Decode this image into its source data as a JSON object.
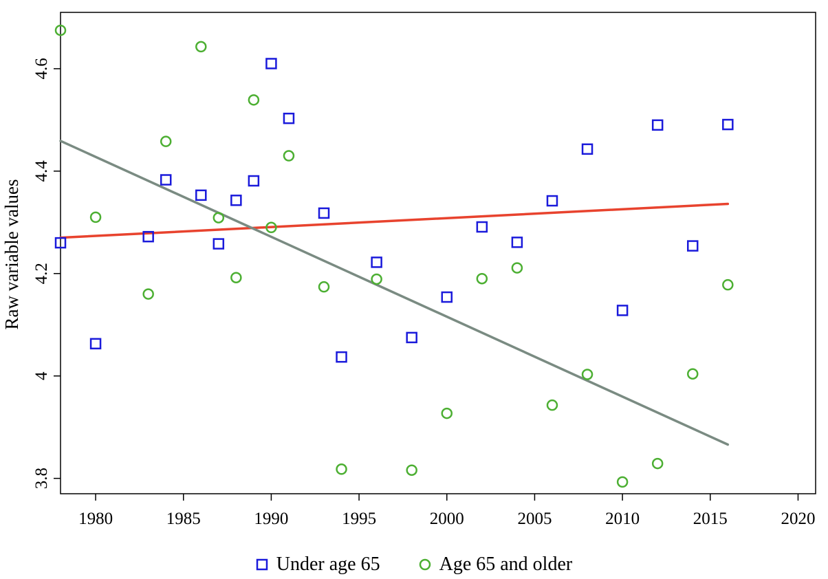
{
  "chart_data": {
    "type": "scatter",
    "title": "",
    "xlabel": "",
    "ylabel": "Raw variable values",
    "xlim": [
      1978,
      2021
    ],
    "ylim": [
      3.77,
      4.71
    ],
    "xticks": [
      1980,
      1985,
      1990,
      1995,
      2000,
      2005,
      2010,
      2015,
      2020
    ],
    "yticks": [
      3.8,
      4,
      4.2,
      4.4,
      4.6
    ],
    "ytick_labels": [
      "3.8",
      "4",
      "4.2",
      "4.4",
      "4.6"
    ],
    "grid": false,
    "legend_position": "bottom",
    "series": [
      {
        "name": "Under age 65",
        "marker": "square",
        "color": "#1a1adb",
        "x": [
          1978,
          1980,
          1983,
          1984,
          1986,
          1987,
          1988,
          1989,
          1990,
          1991,
          1993,
          1994,
          1996,
          1998,
          2000,
          2002,
          2004,
          2006,
          2008,
          2010,
          2012,
          2014,
          2016
        ],
        "y": [
          4.26,
          4.063,
          4.272,
          4.383,
          4.353,
          4.258,
          4.343,
          4.381,
          4.61,
          4.503,
          4.318,
          4.037,
          4.222,
          4.075,
          4.154,
          4.291,
          4.261,
          4.342,
          4.443,
          4.128,
          4.49,
          4.254,
          4.491
        ]
      },
      {
        "name": "Age 65 and older",
        "marker": "circle",
        "color": "#4caf32",
        "x": [
          1978,
          1980,
          1983,
          1984,
          1986,
          1987,
          1988,
          1989,
          1990,
          1991,
          1993,
          1994,
          1996,
          1998,
          2000,
          2002,
          2004,
          2006,
          2008,
          2010,
          2012,
          2014,
          2016
        ],
        "y": [
          4.675,
          4.31,
          4.16,
          4.458,
          4.643,
          4.309,
          4.192,
          4.539,
          4.29,
          4.43,
          4.174,
          3.818,
          4.189,
          3.816,
          3.927,
          4.19,
          4.211,
          3.943,
          4.003,
          3.793,
          3.829,
          4.004,
          4.178
        ]
      }
    ],
    "fit_lines": [
      {
        "series": "Under age 65",
        "color": "#e8432e",
        "x": [
          1978,
          2016
        ],
        "y": [
          4.27,
          4.336
        ]
      },
      {
        "series": "Age 65 and older",
        "color": "#7a8b82",
        "x": [
          1978,
          2016
        ],
        "y": [
          4.459,
          3.866
        ]
      }
    ]
  }
}
